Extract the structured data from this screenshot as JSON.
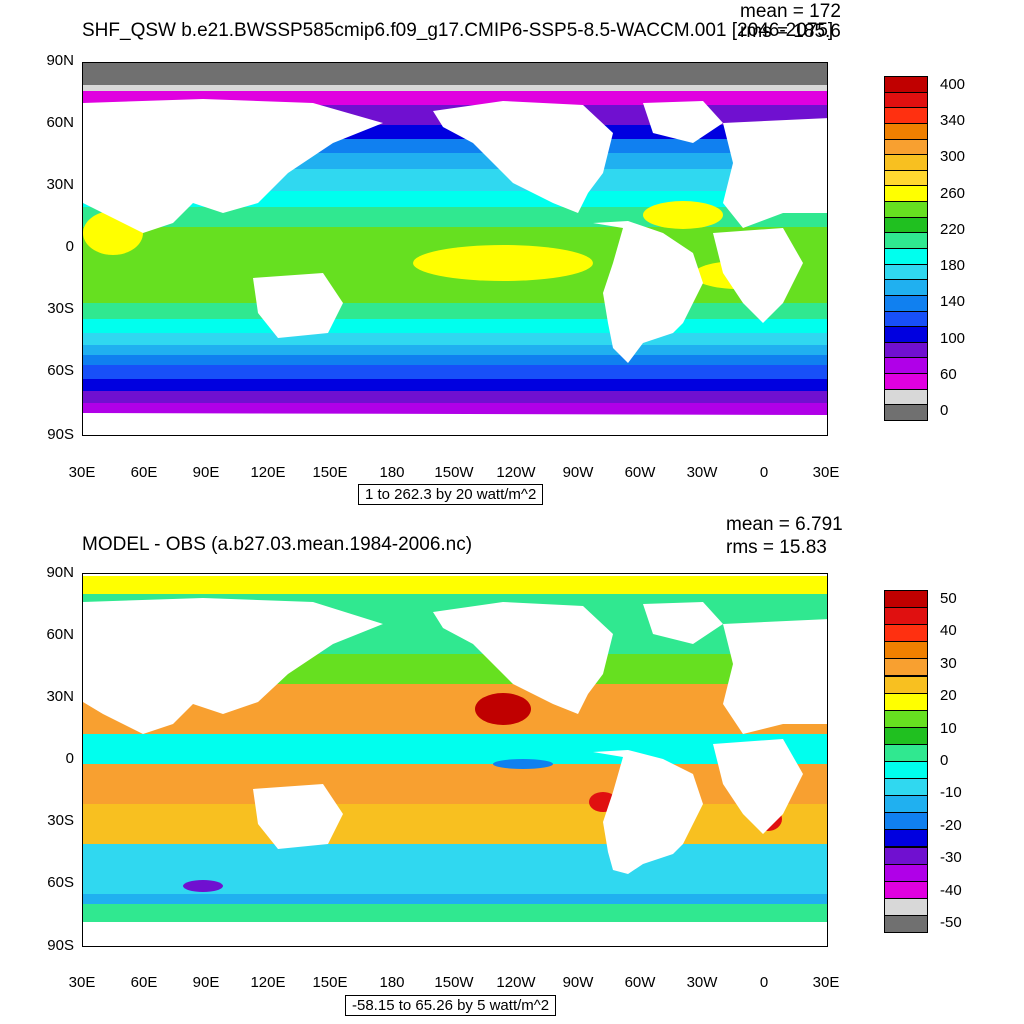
{
  "panels": [
    {
      "title": "SHF_QSW b.e21.BWSSP585cmip6.f09_g17.CMIP6-SSP5-8.5-WACCM.001 [2046-2075]",
      "mean_text": "mean = 172",
      "rms_text": "rms = 185.6",
      "lat_labels": [
        "90N",
        "60N",
        "30N",
        "0",
        "30S",
        "60S",
        "90S"
      ],
      "lon_labels": [
        "30E",
        "60E",
        "90E",
        "120E",
        "150E",
        "180",
        "150W",
        "120W",
        "90W",
        "60W",
        "30W",
        "0",
        "30E"
      ],
      "info": "1 to 262.3 by 20 watt/m^2",
      "colorbar": {
        "labels": [
          "400",
          "340",
          "300",
          "260",
          "220",
          "180",
          "140",
          "100",
          "60",
          "0"
        ],
        "colors": [
          "#c00000",
          "#e01010",
          "#ff3010",
          "#f08000",
          "#f8a030",
          "#f8c020",
          "#ffd830",
          "#ffff00",
          "#66e020",
          "#20c020",
          "#30e890",
          "#00ffee",
          "#30d8f0",
          "#20b0f0",
          "#1080f0",
          "#1850f8",
          "#0000e0",
          "#7010d0",
          "#b000e8",
          "#e000e0",
          "#d8d8d8",
          "#707070"
        ]
      }
    },
    {
      "title": "MODEL - OBS (a.b27.03.mean.1984-2006.nc)",
      "mean_text": "mean = 6.791",
      "rms_text": "rms = 15.83",
      "lat_labels": [
        "90N",
        "60N",
        "30N",
        "0",
        "30S",
        "60S",
        "90S"
      ],
      "lon_labels": [
        "30E",
        "60E",
        "90E",
        "120E",
        "150E",
        "180",
        "150W",
        "120W",
        "90W",
        "60W",
        "30W",
        "0",
        "30E"
      ],
      "info": "-58.15 to 65.26 by 5 watt/m^2",
      "colorbar": {
        "labels": [
          "50",
          "40",
          "30",
          "20",
          "10",
          "0",
          "-10",
          "-20",
          "-30",
          "-40",
          "-50"
        ],
        "colors": [
          "#c00000",
          "#e01010",
          "#ff3010",
          "#f08000",
          "#f8a030",
          "#f8c020",
          "#ffff00",
          "#66e020",
          "#20c020",
          "#30e890",
          "#00ffee",
          "#30d8f0",
          "#20b0f0",
          "#1080f0",
          "#0000e0",
          "#7010d0",
          "#b000e8",
          "#e000e0",
          "#d8d8d8",
          "#707070"
        ]
      }
    }
  ]
}
